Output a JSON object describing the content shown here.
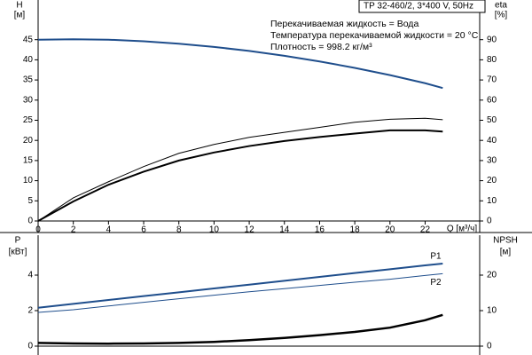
{
  "chart_data": [
    {
      "type": "line",
      "title": "TP 32-460/2, 3*400 V, 50Hz",
      "annotations": [
        "Перекачиваемая жидкость = Вода",
        "Температура перекачиваемой жидкости = 20 °C",
        "Плотность = 998.2 кг/м³"
      ],
      "xlabel": "Q [м³/ч]",
      "ylabel": "H",
      "ylabel_unit": "[м]",
      "y2label": "eta",
      "y2label_unit": "[%]",
      "x": [
        0,
        2,
        4,
        6,
        8,
        10,
        12,
        14,
        16,
        18,
        20,
        22,
        23
      ],
      "xlim": [
        0,
        25
      ],
      "xticks": [
        0,
        2,
        4,
        6,
        8,
        10,
        12,
        14,
        16,
        18,
        20,
        22
      ],
      "ylim": [
        0,
        50
      ],
      "yticks": [
        0,
        5,
        10,
        15,
        20,
        25,
        30,
        35,
        40,
        45
      ],
      "y2lim": [
        0,
        100
      ],
      "y2ticks": [
        0,
        10,
        20,
        30,
        40,
        50,
        60,
        70,
        80,
        90
      ],
      "series": [
        {
          "color": "#1f4e8c",
          "linewidth": 2,
          "values": [
            45,
            45.1,
            45,
            44.6,
            44,
            43.2,
            42.2,
            41,
            39.6,
            38,
            36.2,
            34.2,
            33
          ]
        },
        {
          "color": "#000000",
          "linewidth": 1,
          "axis": "y2",
          "values": [
            0,
            11.5,
            19.5,
            27,
            33.6,
            38,
            41.5,
            44,
            46.5,
            49,
            50.5,
            51,
            50.3
          ]
        },
        {
          "color": "#000000",
          "linewidth": 2,
          "axis": "y2",
          "values": [
            0,
            9.7,
            18,
            24.5,
            30,
            34,
            37.2,
            39.7,
            41.7,
            43.4,
            45,
            45,
            44.4
          ]
        }
      ]
    },
    {
      "type": "line",
      "ylabel": "P",
      "ylabel_unit": "[кВт]",
      "y2label": "NPSH",
      "y2label_unit": "[м]",
      "x": [
        0,
        2,
        4,
        6,
        8,
        10,
        12,
        14,
        16,
        18,
        20,
        22,
        23
      ],
      "xlim": [
        0,
        25
      ],
      "ylim": [
        0,
        6
      ],
      "yticks": [
        0,
        2,
        4
      ],
      "y2lim": [
        0,
        30
      ],
      "y2ticks": [
        0,
        10,
        20
      ],
      "series": [
        {
          "name": "P1",
          "color": "#1f4e8c",
          "linewidth": 2,
          "values": [
            2.16,
            2.38,
            2.6,
            2.82,
            3.03,
            3.25,
            3.46,
            3.68,
            3.9,
            4.12,
            4.33,
            4.55,
            4.65
          ]
        },
        {
          "name": "P2",
          "color": "#1f4e8c",
          "linewidth": 1,
          "values": [
            1.9,
            2.05,
            2.26,
            2.47,
            2.67,
            2.87,
            3.06,
            3.24,
            3.42,
            3.6,
            3.77,
            3.98,
            4.08
          ]
        },
        {
          "color": "#000000",
          "linewidth": 2.5,
          "axis": "y2",
          "values": [
            0.9,
            0.75,
            0.7,
            0.75,
            0.9,
            1.2,
            1.7,
            2.3,
            3.1,
            4,
            5.2,
            7.3,
            8.8
          ]
        }
      ]
    }
  ]
}
